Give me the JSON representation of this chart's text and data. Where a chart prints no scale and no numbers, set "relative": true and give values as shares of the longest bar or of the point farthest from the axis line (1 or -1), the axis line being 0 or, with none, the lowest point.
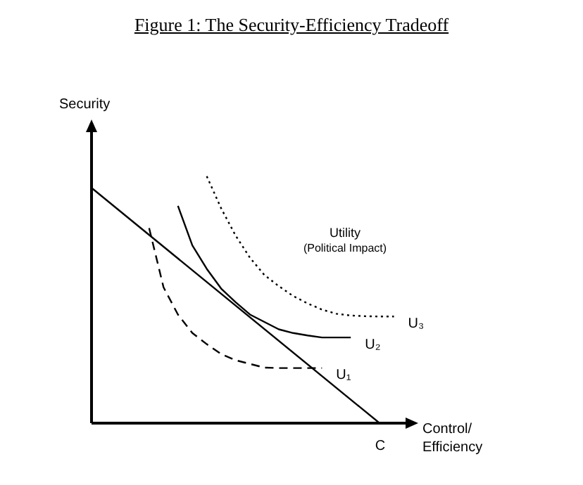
{
  "chart_data": {
    "type": "line",
    "title": "Figure 1: The Security-Efficiency Tradeoff",
    "xlabel": "Control/ Efficiency",
    "ylabel": "Security",
    "relative": true,
    "tick_labels": false,
    "legend": false,
    "marker": "none",
    "annotations": [
      "Utility",
      "(Political Impact)",
      "C"
    ],
    "categories": [
      null,
      null,
      null,
      null,
      null,
      null,
      null,
      null,
      null,
      null,
      null,
      null,
      null,
      null,
      null,
      null,
      null,
      null,
      null,
      null,
      null,
      null,
      null
    ],
    "series": [
      {
        "color": "#000000",
        "line_style": "solid",
        "values": [
          0.953,
          null,
          null,
          null,
          null,
          null,
          null,
          null,
          null,
          null,
          null,
          null,
          null,
          null,
          null,
          null,
          null,
          null,
          null,
          null,
          0,
          null,
          null
        ]
      },
      {
        "name": "U₃",
        "color": "#000000",
        "line_style": "dotted",
        "values": [
          null,
          null,
          null,
          null,
          null,
          null,
          null,
          null,
          1,
          0.87,
          0.76,
          0.67,
          0.6,
          0.555,
          0.515,
          0.485,
          0.46,
          0.443,
          0.436,
          0.433,
          0.432,
          0.432,
          null
        ]
      },
      {
        "name": "U₂",
        "color": "#000000",
        "line_style": "solid",
        "values": [
          null,
          null,
          null,
          null,
          null,
          null,
          0.88,
          0.72,
          0.625,
          0.545,
          0.49,
          0.44,
          0.41,
          0.38,
          0.365,
          0.355,
          0.347,
          0.347,
          0.347,
          null,
          null,
          null,
          null
        ]
      },
      {
        "name": "U₁",
        "color": "#000000",
        "line_style": "dashed",
        "values": [
          null,
          null,
          null,
          null,
          0.79,
          0.55,
          0.44,
          0.365,
          0.32,
          0.28,
          0.255,
          0.24,
          0.225,
          0.223,
          0.223,
          0.223,
          0.223,
          null,
          null,
          null,
          null,
          null,
          null
        ]
      }
    ]
  }
}
